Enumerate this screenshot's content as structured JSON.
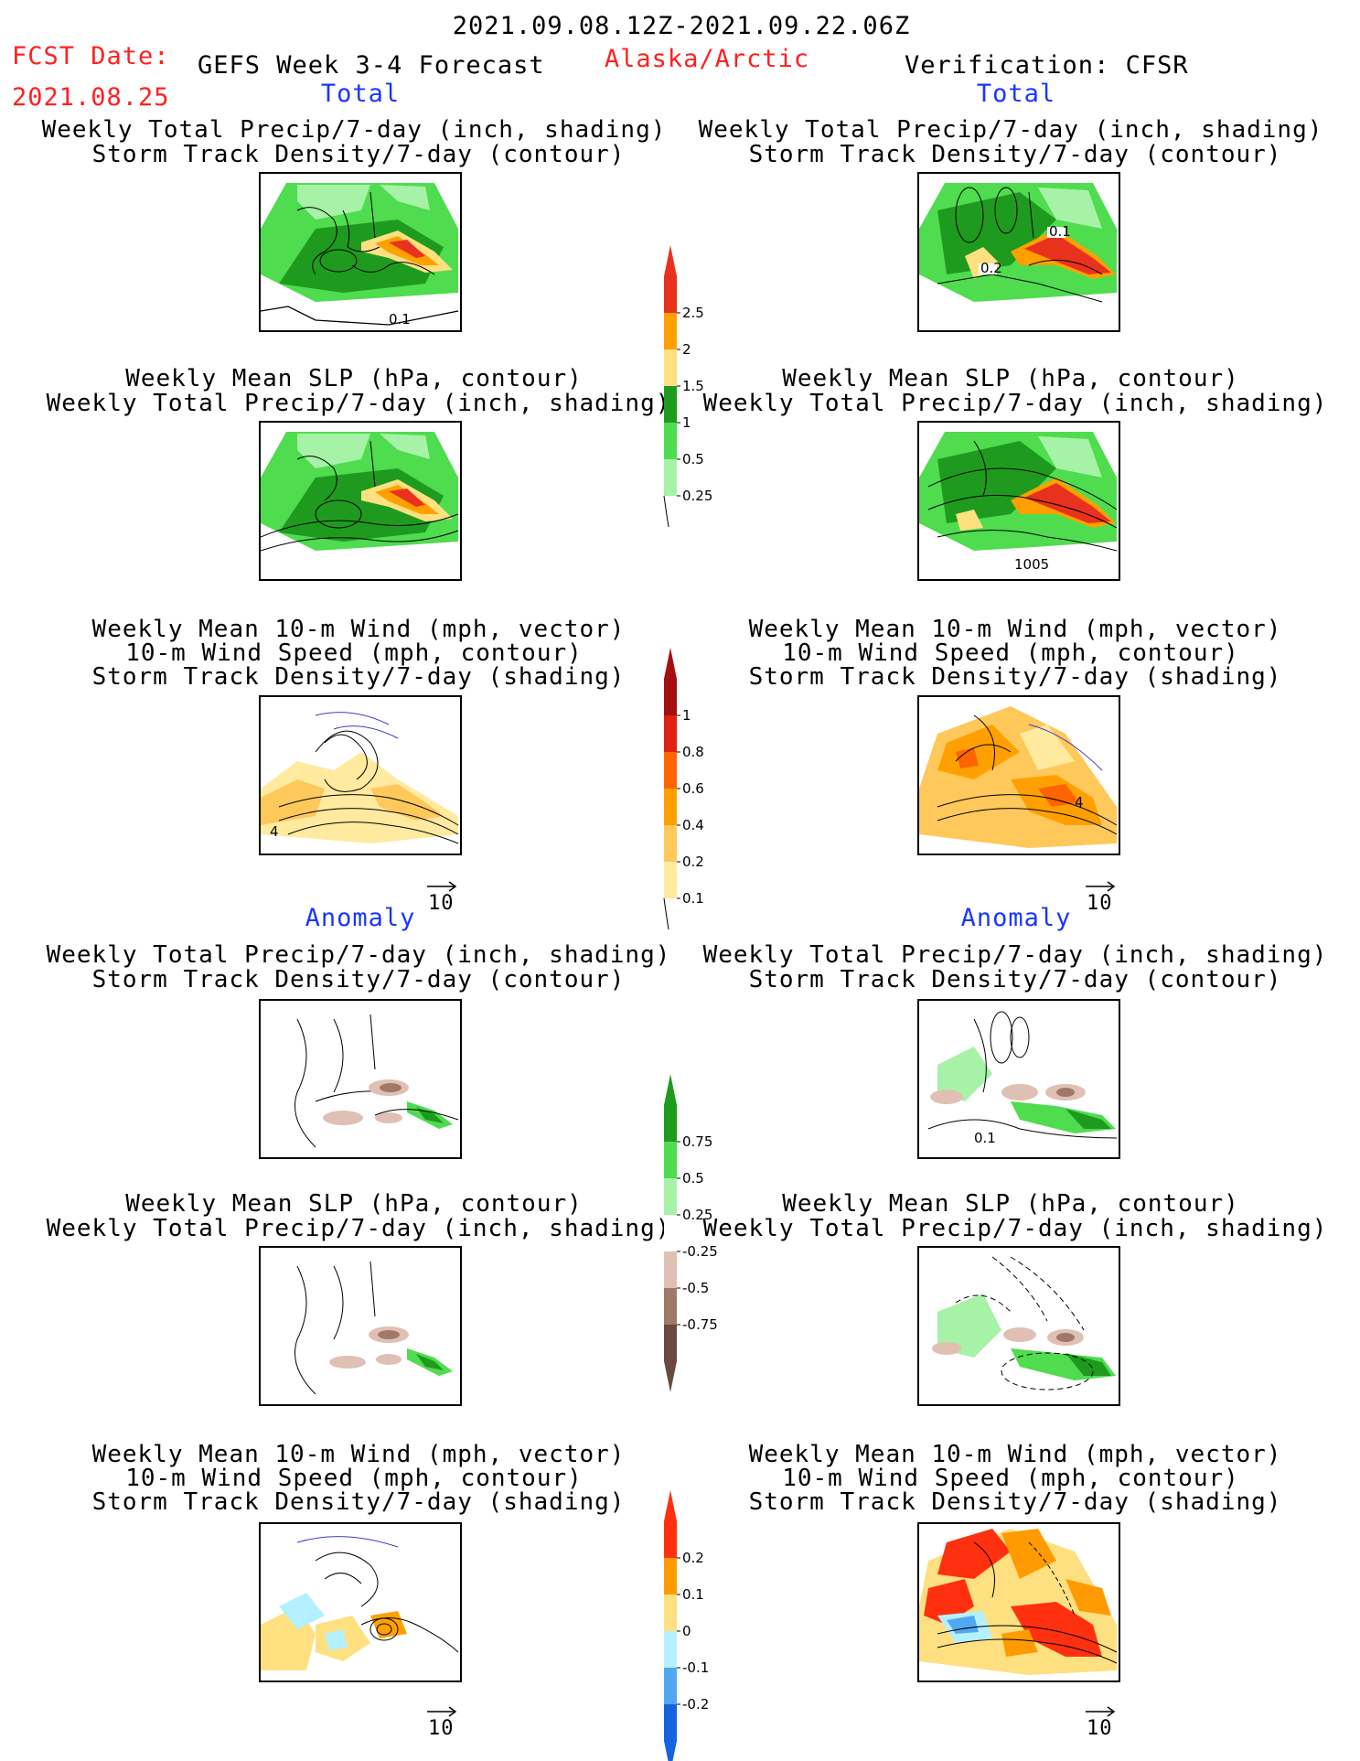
{
  "header": {
    "period": "2021.09.08.12Z-2021.09.22.06Z",
    "fcst_label": "FCST Date:",
    "fcst_date": "2021.08.25",
    "model": "GEFS Week 3-4 Forecast",
    "region": "Alaska/Arctic",
    "verification": "Verification: CFSR"
  },
  "sections": {
    "total": "Total",
    "anomaly": "Anomaly"
  },
  "panel_titles": {
    "precip_storm": [
      "Weekly Total Precip/7-day (inch, shading)",
      "Storm Track Density/7-day (contour)"
    ],
    "slp_precip": [
      "Weekly Mean SLP (hPa, contour)",
      "Weekly Total Precip/7-day (inch, shading)"
    ],
    "wind_storm": [
      "Weekly Mean 10-m Wind (mph, vector)",
      "10-m Wind Speed (mph, contour)",
      "Storm Track Density/7-day (shading)"
    ]
  },
  "map_labels": {
    "p1": "0.1",
    "p2a": "0.2",
    "p2b": "0.1",
    "p4": "1005",
    "p5": "4",
    "p6": "4",
    "p8": "0.1"
  },
  "vector_ref": "10",
  "colorbars": [
    {
      "id": "precip_total",
      "labels": [
        "2.5",
        "2",
        "1.5",
        "1",
        "0.5",
        "0.25"
      ],
      "colors": [
        "#e8321e",
        "#ffa000",
        "#ffe080",
        "#1e9b1e",
        "#4fdc4f",
        "#a6f2a6"
      ]
    },
    {
      "id": "storm_total",
      "labels": [
        "1",
        "0.8",
        "0.6",
        "0.4",
        "0.2",
        "0.1"
      ],
      "colors": [
        "#a50f0f",
        "#e02010",
        "#ff6400",
        "#ffa000",
        "#ffc85a",
        "#ffeaa0"
      ]
    },
    {
      "id": "precip_anom",
      "labels": [
        "0.75",
        "0.5",
        "0.25",
        "-0.25",
        "-0.5",
        "-0.75"
      ],
      "colors": [
        "#1e9b1e",
        "#4fdc4f",
        "#a6f2a6",
        "#ffffff",
        "#e0c0b4",
        "#a07868",
        "#6a4a3e"
      ]
    },
    {
      "id": "storm_anom",
      "labels": [
        "0.2",
        "0.1",
        "0",
        "-0.1",
        "-0.2"
      ],
      "colors": [
        "#ff3010",
        "#ff9a00",
        "#ffe080",
        "#b4f0ff",
        "#50a8f0",
        "#1464e0"
      ]
    }
  ]
}
